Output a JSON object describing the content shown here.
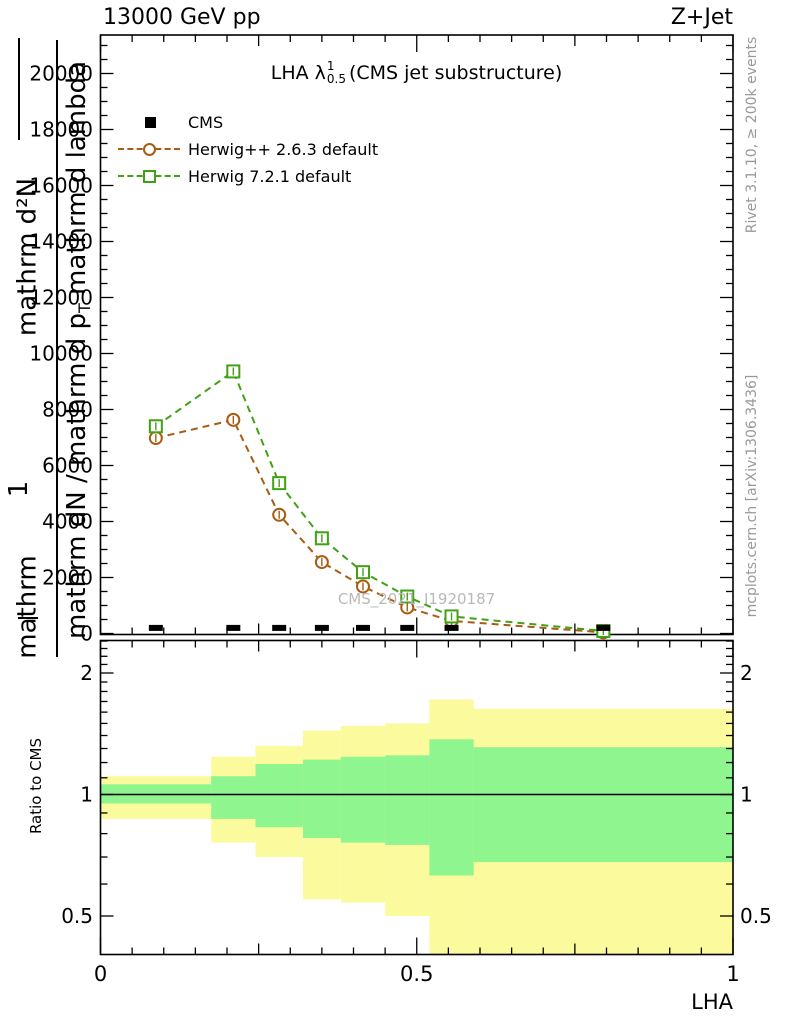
{
  "header": {
    "left": "13000 GeV pp",
    "right": "Z+Jet"
  },
  "title": {
    "prefix": "LHA λ",
    "sup": "1",
    "sub": "0.5",
    "suffix": "(CMS jet substructure)"
  },
  "legend": [
    {
      "label": "CMS",
      "marker": "filled-square",
      "color": "#000000"
    },
    {
      "label": "Herwig++ 2.6.3 default",
      "marker": "open-circle",
      "color": "#a85c11"
    },
    {
      "label": "Herwig 7.2.1 default",
      "marker": "open-square",
      "color": "#42a015"
    }
  ],
  "watermark": "CMS_2021_I1920187",
  "side_notes": {
    "top": "Rivet 3.1.10, ≥ 200k events",
    "bottom": "mcplots.cern.ch [arXiv:1306.3436]"
  },
  "ylabel_garbled": {
    "outer_top": "mathrm d²N",
    "outer_mid": "1",
    "outer_bottom": "mathrm",
    "inner_a": "mathrm dN / mathrm d p",
    "inner_sub": "T",
    "inner_b": " mathrm d lambda"
  },
  "ratio_ylabel": "Ratio to CMS",
  "xlabel": "LHA",
  "chart_data": {
    "type": "line",
    "title": "LHA lambda_0.5^1 (CMS jet substructure)",
    "xlabel": "LHA",
    "ylabel_ratio": "Ratio to CMS",
    "xlim": [
      0,
      1
    ],
    "main_ylim": [
      0,
      21300
    ],
    "main_yticks_major": [
      0,
      2000,
      4000,
      6000,
      8000,
      10000,
      12000,
      14000,
      16000,
      18000,
      20000
    ],
    "main_ytick_minor_step": 500,
    "xticks_labeled": [
      0,
      0.5,
      1
    ],
    "xtick_labels": [
      "0",
      "0.5",
      "1"
    ],
    "xtick_minor_step": 0.05,
    "xtick_medium": [
      0.25,
      0.75
    ],
    "bin_edges": [
      0,
      0.175,
      0.245,
      0.32,
      0.38,
      0.45,
      0.52,
      0.59,
      1.0
    ],
    "x_centers": [
      0.0875,
      0.21,
      0.2825,
      0.35,
      0.415,
      0.485,
      0.555,
      0.795
    ],
    "series": [
      {
        "name": "CMS",
        "style": "filled-bar-markers",
        "color": "#000000",
        "values": [
          200,
          200,
          200,
          200,
          200,
          200,
          200,
          200
        ]
      },
      {
        "name": "Herwig++ 2.6.3 default",
        "style": "dashed-open-circle",
        "color": "#a85c11",
        "values": [
          6980,
          7630,
          4240,
          2550,
          1680,
          930,
          450,
          40
        ]
      },
      {
        "name": "Herwig 7.2.1 default",
        "style": "dashed-open-square",
        "color": "#42a015",
        "values": [
          7400,
          9360,
          5370,
          3400,
          2190,
          1320,
          610,
          90
        ]
      }
    ],
    "ratio_panel": {
      "scale": "log",
      "ylim": [
        0.4,
        2.41
      ],
      "yticks_labeled": [
        0.5,
        1,
        2
      ],
      "ytick_labels": [
        "0.5",
        "1",
        "2"
      ],
      "yticks_minor": [
        0.4,
        0.6,
        0.7,
        0.8,
        0.9,
        1.1,
        1.2,
        1.3,
        1.4,
        1.5,
        1.6,
        1.7,
        1.8,
        1.9,
        2.1,
        2.2,
        2.3,
        2.4
      ],
      "reference_line": 1,
      "bands": {
        "yellow_color": "#fbfb9d",
        "green_color": "#8ff58f",
        "yellow_lo": [
          0.87,
          0.76,
          0.7,
          0.55,
          0.54,
          0.5,
          0.4,
          0.4
        ],
        "yellow_hi": [
          1.11,
          1.24,
          1.32,
          1.44,
          1.48,
          1.5,
          1.72,
          1.63
        ],
        "green_lo": [
          0.95,
          0.87,
          0.83,
          0.78,
          0.76,
          0.75,
          0.63,
          0.68
        ],
        "green_hi": [
          1.06,
          1.11,
          1.19,
          1.22,
          1.24,
          1.25,
          1.37,
          1.31
        ]
      }
    }
  }
}
